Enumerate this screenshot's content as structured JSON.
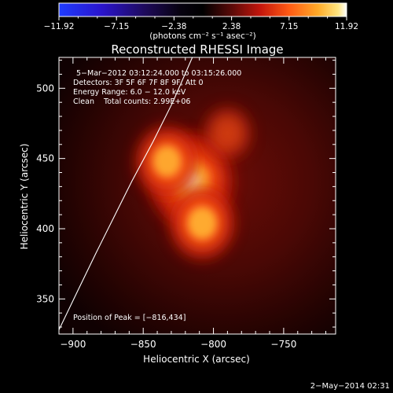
{
  "chart_data": {
    "type": "heatmap",
    "title": "Reconstructed RHESSI Image",
    "xlabel": "Heliocentric X (arcsec)",
    "ylabel": "Heliocentric Y (arcsec)",
    "xlim": [
      -910,
      -713
    ],
    "ylim": [
      325,
      522
    ],
    "x_ticks": [
      {
        "value": -900,
        "label": "−900"
      },
      {
        "value": -850,
        "label": "−850"
      },
      {
        "value": -800,
        "label": "−800"
      },
      {
        "value": -750,
        "label": "−750"
      }
    ],
    "y_ticks": [
      {
        "value": 350,
        "label": "350"
      },
      {
        "value": 400,
        "label": "400"
      },
      {
        "value": 450,
        "label": "450"
      },
      {
        "value": 500,
        "label": "500"
      }
    ],
    "colorbar": {
      "range": [
        -11.92,
        11.92
      ],
      "tick_labels": [
        "−11.92",
        "−7.15",
        "−2.38",
        "2.38",
        "7.15",
        "11.92"
      ],
      "unit_label": "(photons cm⁻² s⁻¹ asec⁻²)"
    },
    "info_lines": [
      "5−Mar−2012 03:12:24.000 to 03:15:26.000",
      "Detectors: 3F 5F 6F 7F 8F 9F, Att 0",
      "Energy Range: 6.0 − 12.0 keV",
      "Clean    Total counts: 2.99E+06"
    ],
    "peak": {
      "x": -816,
      "y": 434,
      "label": "Position of Peak = [−816,434]"
    },
    "source_lobes": [
      {
        "x": -816,
        "y": 434,
        "intensity": 11.9
      },
      {
        "x": -808,
        "y": 404,
        "intensity": 7.0
      },
      {
        "x": -833,
        "y": 448,
        "intensity": 6.5
      },
      {
        "x": -790,
        "y": 468,
        "intensity": 2.5
      }
    ],
    "limb_curve": [
      [
        -910,
        328
      ],
      [
        -897,
        355
      ],
      [
        -884,
        382
      ],
      [
        -870,
        410
      ],
      [
        -858,
        434
      ],
      [
        -843,
        462
      ],
      [
        -829,
        490
      ],
      [
        -815,
        522
      ]
    ],
    "grid": false
  },
  "timestamp": "2−May−2014 02:31"
}
